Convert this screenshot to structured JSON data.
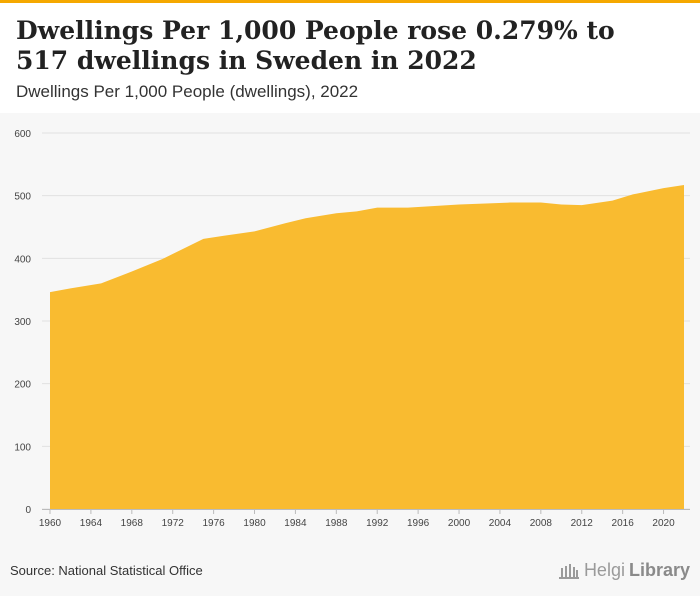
{
  "title": "Dwellings Per 1,000 People rose 0.279% to 517 dwellings in Sweden in 2022",
  "subtitle": "Dwellings Per 1,000 People (dwellings), 2022",
  "source": "Source: National Statistical Office",
  "brand": {
    "name_a": "Helgi",
    "name_b": "Library"
  },
  "colors": {
    "accent": "#f5a800",
    "area": "#f9bb30",
    "grid": "#e2e2e2",
    "background": "#f7f7f7"
  },
  "chart_data": {
    "type": "area",
    "title": "Dwellings Per 1,000 People (dwellings), 2022",
    "xlabel": "",
    "ylabel": "",
    "xlim": [
      1960,
      2022
    ],
    "ylim": [
      0,
      600
    ],
    "yticks": [
      0,
      100,
      200,
      300,
      400,
      500,
      600
    ],
    "xticks": [
      1960,
      1964,
      1968,
      1972,
      1976,
      1980,
      1984,
      1988,
      1992,
      1996,
      2000,
      2004,
      2008,
      2012,
      2016,
      2020
    ],
    "grid": true,
    "series": [
      {
        "name": "Dwellings Per 1,000 People",
        "x": [
          1960,
          1962,
          1965,
          1968,
          1971,
          1975,
          1977,
          1980,
          1983,
          1985,
          1988,
          1990,
          1992,
          1995,
          2000,
          2005,
          2008,
          2010,
          2012,
          2015,
          2017,
          2020,
          2022
        ],
        "values": [
          346,
          352,
          360,
          379,
          399,
          431,
          436,
          443,
          456,
          464,
          472,
          475,
          481,
          481,
          486,
          489,
          489,
          486,
          485,
          492,
          502,
          512,
          517
        ]
      }
    ]
  }
}
